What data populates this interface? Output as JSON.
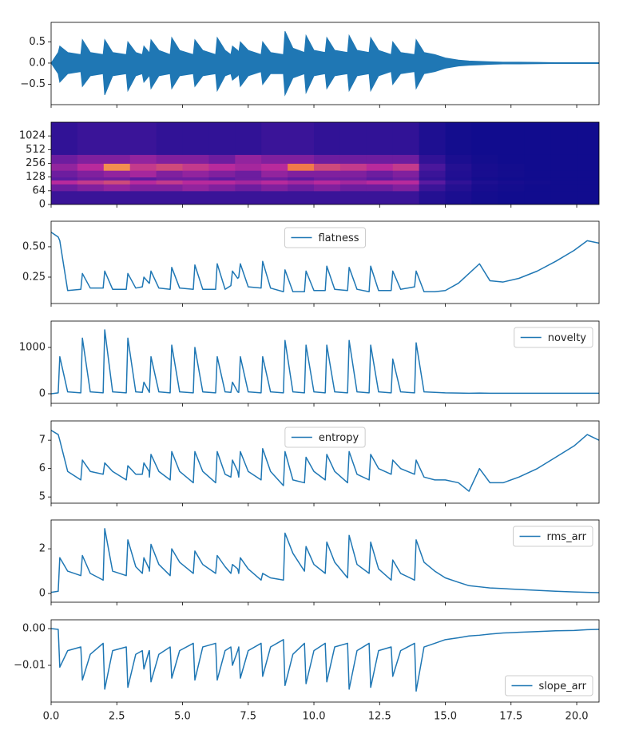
{
  "chart_data": {
    "type": "subplots",
    "x": [
      0,
      0.27,
      0.33,
      0.63,
      1.13,
      1.19,
      1.49,
      1.98,
      2.04,
      2.34,
      2.86,
      2.92,
      3.22,
      3.47,
      3.53,
      3.73,
      3.74,
      3.8,
      4.1,
      4.53,
      4.59,
      4.89,
      5.41,
      5.47,
      5.77,
      6.26,
      6.32,
      6.62,
      6.84,
      6.9,
      7.1,
      7.14,
      7.2,
      7.5,
      7.99,
      8.05,
      8.35,
      8.84,
      8.9,
      9.2,
      9.64,
      9.7,
      10.0,
      10.43,
      10.49,
      10.79,
      11.28,
      11.34,
      11.64,
      12.1,
      12.16,
      12.46,
      12.94,
      13.0,
      13.3,
      13.83,
      13.89,
      14.19,
      14.6,
      15.0,
      15.5,
      15.9,
      16.3,
      16.7,
      17.2,
      17.8,
      18.5,
      19.2,
      19.9,
      20.4,
      20.85
    ],
    "xlim": [
      0,
      20.85
    ],
    "xticks": [
      {
        "value": 0,
        "label": "0.0"
      },
      2.5,
      {
        "value": 5,
        "label": "5.0"
      },
      7.5,
      {
        "value": 10,
        "label": "10.0"
      },
      12.5,
      {
        "value": 15,
        "label": "15.0"
      },
      17.5,
      {
        "value": 20,
        "label": "20.0"
      }
    ],
    "panels": [
      {
        "type": "area",
        "color": "#1f77b4",
        "ylim": [
          -0.98,
          0.96
        ],
        "yticks": [
          {
            "value": -0.5,
            "label": "−0.5"
          },
          {
            "value": 0,
            "label": "0.0"
          },
          {
            "value": 0.5,
            "label": "0.5"
          }
        ],
        "series": [
          {
            "values": [
              0,
              0.25,
              0.4,
              0.25,
              0.2,
              0.55,
              0.25,
              0.2,
              0.55,
              0.25,
              0.2,
              0.5,
              0.25,
              0.2,
              0.4,
              0.25,
              0.2,
              0.55,
              0.3,
              0.2,
              0.6,
              0.3,
              0.2,
              0.55,
              0.3,
              0.2,
              0.6,
              0.3,
              0.2,
              0.4,
              0.3,
              0.25,
              0.5,
              0.3,
              0.2,
              0.5,
              0.25,
              0.2,
              0.75,
              0.35,
              0.25,
              0.65,
              0.3,
              0.25,
              0.6,
              0.3,
              0.25,
              0.65,
              0.3,
              0.25,
              0.6,
              0.3,
              0.2,
              0.5,
              0.25,
              0.2,
              0.55,
              0.25,
              0.2,
              0.12,
              0.07,
              0.05,
              0.04,
              0.03,
              0.02,
              0.02,
              0.015,
              0.01,
              0.01,
              0.01,
              0.01
            ]
          },
          {
            "values": [
              0,
              -0.25,
              -0.45,
              -0.25,
              -0.2,
              -0.55,
              -0.3,
              -0.25,
              -0.75,
              -0.3,
              -0.25,
              -0.65,
              -0.3,
              -0.25,
              -0.45,
              -0.3,
              -0.25,
              -0.6,
              -0.3,
              -0.25,
              -0.6,
              -0.3,
              -0.25,
              -0.55,
              -0.3,
              -0.25,
              -0.65,
              -0.3,
              -0.25,
              -0.4,
              -0.3,
              -0.25,
              -0.55,
              -0.3,
              -0.2,
              -0.5,
              -0.25,
              -0.25,
              -0.75,
              -0.35,
              -0.25,
              -0.7,
              -0.3,
              -0.25,
              -0.6,
              -0.3,
              -0.25,
              -0.65,
              -0.3,
              -0.25,
              -0.65,
              -0.3,
              -0.2,
              -0.5,
              -0.25,
              -0.2,
              -0.6,
              -0.25,
              -0.2,
              -0.12,
              -0.07,
              -0.05,
              -0.04,
              -0.03,
              -0.02,
              -0.02,
              -0.015,
              -0.01,
              -0.01,
              -0.01,
              -0.01
            ]
          }
        ]
      },
      {
        "type": "heatmap",
        "yscale": "symlog",
        "linthresh": 64,
        "ylim": [
          0,
          2048
        ],
        "yticks": [
          0,
          64,
          128,
          256,
          512,
          1024
        ],
        "colormap": [
          "#0b0b8c",
          "#5a1aa0",
          "#b82a9c",
          "#f07a4a",
          "#ffe066"
        ],
        "x_edges": [
          0,
          1,
          2,
          3,
          4,
          5,
          6,
          7,
          8,
          9,
          10,
          11,
          12,
          13,
          14,
          15,
          16,
          17,
          18,
          19,
          20,
          20.85
        ],
        "y_edges": [
          0,
          64,
          90,
          110,
          128,
          180,
          256,
          400,
          2048
        ],
        "z": [
          [
            0.15,
            0.15,
            0.15,
            0.15,
            0.15,
            0.15,
            0.15,
            0.15,
            0.15,
            0.15,
            0.15,
            0.15,
            0.15,
            0.15,
            0.08,
            0.05,
            0.03,
            0.02,
            0.02,
            0.02,
            0.02
          ],
          [
            0.3,
            0.35,
            0.4,
            0.35,
            0.35,
            0.4,
            0.35,
            0.3,
            0.35,
            0.3,
            0.35,
            0.3,
            0.3,
            0.35,
            0.15,
            0.08,
            0.04,
            0.03,
            0.02,
            0.02,
            0.02
          ],
          [
            0.5,
            0.55,
            0.6,
            0.5,
            0.55,
            0.5,
            0.5,
            0.45,
            0.5,
            0.45,
            0.5,
            0.45,
            0.5,
            0.5,
            0.25,
            0.12,
            0.06,
            0.04,
            0.03,
            0.02,
            0.02
          ],
          [
            0.25,
            0.3,
            0.3,
            0.25,
            0.3,
            0.3,
            0.25,
            0.3,
            0.3,
            0.25,
            0.3,
            0.3,
            0.25,
            0.3,
            0.12,
            0.06,
            0.03,
            0.02,
            0.02,
            0.02,
            0.02
          ],
          [
            0.3,
            0.35,
            0.4,
            0.45,
            0.35,
            0.4,
            0.35,
            0.3,
            0.4,
            0.35,
            0.35,
            0.35,
            0.3,
            0.35,
            0.15,
            0.07,
            0.04,
            0.03,
            0.02,
            0.02,
            0.02
          ],
          [
            0.4,
            0.5,
            0.8,
            0.55,
            0.6,
            0.55,
            0.5,
            0.45,
            0.5,
            0.75,
            0.6,
            0.55,
            0.5,
            0.55,
            0.2,
            0.08,
            0.04,
            0.03,
            0.02,
            0.02,
            0.02
          ],
          [
            0.3,
            0.35,
            0.35,
            0.4,
            0.35,
            0.35,
            0.3,
            0.4,
            0.35,
            0.35,
            0.3,
            0.3,
            0.3,
            0.3,
            0.12,
            0.05,
            0.03,
            0.02,
            0.02,
            0.02,
            0.02
          ],
          [
            0.12,
            0.15,
            0.15,
            0.15,
            0.12,
            0.12,
            0.12,
            0.12,
            0.15,
            0.15,
            0.12,
            0.12,
            0.12,
            0.12,
            0.06,
            0.03,
            0.02,
            0.02,
            0.02,
            0.02,
            0.02
          ]
        ]
      },
      {
        "type": "line",
        "legend": "upper center",
        "ylim": [
          0.033,
          0.71
        ],
        "yticks": [
          0.25,
          {
            "value": 0.5,
            "label": "0.50"
          }
        ],
        "series": [
          {
            "name": "flatness",
            "color": "#1f77b4",
            "values": [
              0.62,
              0.58,
              0.55,
              0.14,
              0.15,
              0.28,
              0.16,
              0.16,
              0.3,
              0.15,
              0.15,
              0.28,
              0.16,
              0.17,
              0.25,
              0.2,
              0.2,
              0.3,
              0.16,
              0.15,
              0.33,
              0.16,
              0.15,
              0.35,
              0.15,
              0.15,
              0.36,
              0.15,
              0.18,
              0.3,
              0.24,
              0.25,
              0.36,
              0.17,
              0.16,
              0.38,
              0.16,
              0.13,
              0.31,
              0.13,
              0.13,
              0.3,
              0.14,
              0.14,
              0.34,
              0.15,
              0.14,
              0.33,
              0.15,
              0.13,
              0.34,
              0.14,
              0.14,
              0.3,
              0.15,
              0.17,
              0.3,
              0.13,
              0.13,
              0.14,
              0.2,
              0.28,
              0.36,
              0.22,
              0.21,
              0.24,
              0.3,
              0.38,
              0.47,
              0.55,
              0.53
            ]
          }
        ]
      },
      {
        "type": "line",
        "legend": "upper right",
        "ylim": [
          -207,
          1569
        ],
        "yticks": [
          0,
          1000
        ],
        "series": [
          {
            "name": "novelty",
            "color": "#1f77b4",
            "values": [
              0,
              20,
              800,
              40,
              20,
              1200,
              40,
              20,
              1380,
              40,
              20,
              1200,
              40,
              30,
              250,
              40,
              30,
              800,
              40,
              20,
              1050,
              40,
              20,
              1000,
              40,
              20,
              800,
              40,
              30,
              250,
              40,
              30,
              800,
              40,
              20,
              800,
              40,
              20,
              1150,
              40,
              20,
              1050,
              40,
              20,
              1050,
              40,
              20,
              1150,
              40,
              20,
              1050,
              40,
              20,
              750,
              40,
              20,
              1100,
              40,
              30,
              20,
              15,
              10,
              15,
              10,
              10,
              10,
              10,
              10,
              10,
              10,
              10
            ]
          }
        ]
      },
      {
        "type": "line",
        "legend": "upper center",
        "ylim": [
          4.78,
          7.68
        ],
        "yticks": [
          5,
          6,
          7
        ],
        "series": [
          {
            "name": "entropy",
            "color": "#1f77b4",
            "values": [
              7.35,
              7.2,
              7.0,
              5.9,
              5.6,
              6.3,
              5.9,
              5.8,
              6.2,
              5.9,
              5.6,
              6.1,
              5.8,
              5.8,
              6.2,
              5.9,
              5.7,
              6.5,
              5.9,
              5.6,
              6.6,
              5.9,
              5.5,
              6.6,
              5.9,
              5.5,
              6.6,
              5.8,
              5.7,
              6.3,
              5.9,
              5.7,
              6.6,
              5.9,
              5.6,
              6.7,
              5.9,
              5.4,
              6.6,
              5.6,
              5.5,
              6.4,
              5.9,
              5.6,
              6.5,
              5.9,
              5.5,
              6.6,
              5.8,
              5.6,
              6.5,
              6.0,
              5.8,
              6.3,
              6.0,
              5.8,
              6.3,
              5.7,
              5.6,
              5.6,
              5.5,
              5.2,
              6.0,
              5.5,
              5.5,
              5.7,
              6.0,
              6.4,
              6.8,
              7.2,
              7.0
            ]
          }
        ]
      },
      {
        "type": "line",
        "legend": "upper right",
        "ylim": [
          -0.39,
          3.29
        ],
        "yticks": [
          0,
          2
        ],
        "series": [
          {
            "name": "rms_arr",
            "color": "#1f77b4",
            "values": [
              0.05,
              0.1,
              1.6,
              1.0,
              0.8,
              1.7,
              0.9,
              0.6,
              2.9,
              1.0,
              0.8,
              2.4,
              1.2,
              0.9,
              1.6,
              1.1,
              1.0,
              2.2,
              1.3,
              0.8,
              2.0,
              1.4,
              0.9,
              1.9,
              1.3,
              0.9,
              1.7,
              1.2,
              0.9,
              1.3,
              1.1,
              0.9,
              1.6,
              1.1,
              0.6,
              0.9,
              0.7,
              0.6,
              2.7,
              1.8,
              1.0,
              2.1,
              1.3,
              0.9,
              2.3,
              1.4,
              0.7,
              2.6,
              1.3,
              0.9,
              2.3,
              1.1,
              0.6,
              1.5,
              0.9,
              0.6,
              2.4,
              1.4,
              1.0,
              0.7,
              0.5,
              0.35,
              0.3,
              0.25,
              0.22,
              0.18,
              0.14,
              0.1,
              0.07,
              0.05,
              0.04
            ]
          }
        ]
      },
      {
        "type": "line",
        "legend": "lower right",
        "ylim": [
          -0.02,
          0.0024
        ],
        "yticks": [
          {
            "value": -0.01,
            "label": "−0.01"
          },
          {
            "value": 0,
            "label": "0.00"
          }
        ],
        "series": [
          {
            "name": "slope_arr",
            "color": "#1f77b4",
            "values": [
              0,
              -0.0002,
              -0.0105,
              -0.006,
              -0.005,
              -0.014,
              -0.007,
              -0.004,
              -0.0165,
              -0.006,
              -0.005,
              -0.016,
              -0.007,
              -0.006,
              -0.011,
              -0.006,
              -0.006,
              -0.0145,
              -0.007,
              -0.005,
              -0.0135,
              -0.006,
              -0.004,
              -0.014,
              -0.005,
              -0.004,
              -0.014,
              -0.006,
              -0.005,
              -0.01,
              -0.006,
              -0.005,
              -0.0135,
              -0.006,
              -0.004,
              -0.013,
              -0.005,
              -0.003,
              -0.0155,
              -0.007,
              -0.004,
              -0.015,
              -0.006,
              -0.004,
              -0.0145,
              -0.005,
              -0.004,
              -0.0165,
              -0.006,
              -0.004,
              -0.016,
              -0.006,
              -0.005,
              -0.013,
              -0.006,
              -0.004,
              -0.017,
              -0.005,
              -0.004,
              -0.003,
              -0.0025,
              -0.002,
              -0.0018,
              -0.0015,
              -0.0012,
              -0.001,
              -0.0008,
              -0.0006,
              -0.0005,
              -0.0003,
              -0.0002
            ]
          }
        ]
      }
    ]
  }
}
